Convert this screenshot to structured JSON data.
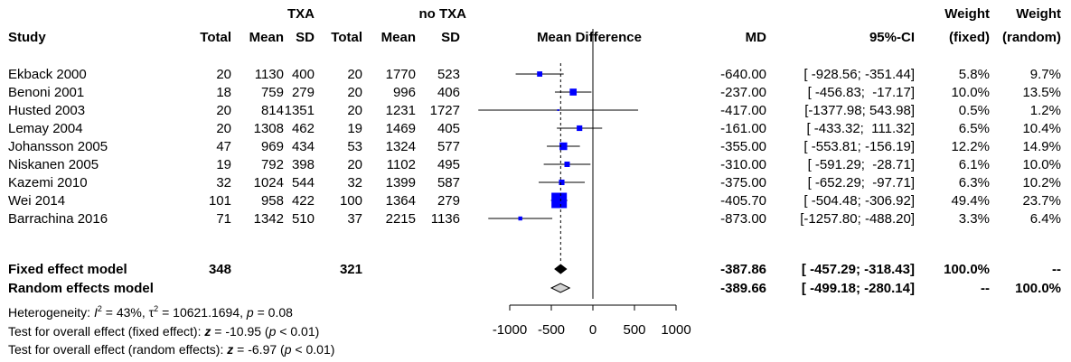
{
  "chart_data": {
    "type": "forest",
    "group_headers": {
      "experimental": "TXA",
      "control": "no TXA"
    },
    "columns": {
      "study": "Study",
      "total_e": "Total",
      "mean_e": "Mean",
      "sd_e": "SD",
      "total_c": "Total",
      "mean_c": "Mean",
      "sd_c": "SD",
      "plot": "Mean Difference",
      "md": "MD",
      "ci": "95%-CI",
      "weight_fixed_1": "Weight",
      "weight_fixed_2": "(fixed)",
      "weight_random_1": "Weight",
      "weight_random_2": "(random)"
    },
    "studies": [
      {
        "name": "Ekback 2000",
        "n_e": "20",
        "mean_e": "1130",
        "sd_e": "400",
        "n_c": "20",
        "mean_c": "1770",
        "sd_c": "523",
        "md": "-640.00",
        "ci": "[ -928.56; -351.44]",
        "w_fixed": "5.8%",
        "w_random": "9.7%",
        "est": -640.0,
        "lo": -928.56,
        "hi": -351.44,
        "wf": 5.8
      },
      {
        "name": "Benoni 2001",
        "n_e": "18",
        "mean_e": "759",
        "sd_e": "279",
        "n_c": "20",
        "mean_c": "996",
        "sd_c": "406",
        "md": "-237.00",
        "ci": "[ -456.83;  -17.17]",
        "w_fixed": "10.0%",
        "w_random": "13.5%",
        "est": -237.0,
        "lo": -456.83,
        "hi": -17.17,
        "wf": 10.0
      },
      {
        "name": "Husted 2003",
        "n_e": "20",
        "mean_e": "814",
        "sd_e": "1351",
        "n_c": "20",
        "mean_c": "1231",
        "sd_c": "1727",
        "md": "-417.00",
        "ci": "[-1377.98; 543.98]",
        "w_fixed": "0.5%",
        "w_random": "1.2%",
        "est": -417.0,
        "lo": -1377.98,
        "hi": 543.98,
        "wf": 0.5
      },
      {
        "name": "Lemay 2004",
        "n_e": "20",
        "mean_e": "1308",
        "sd_e": "462",
        "n_c": "19",
        "mean_c": "1469",
        "sd_c": "405",
        "md": "-161.00",
        "ci": "[ -433.32;  111.32]",
        "w_fixed": "6.5%",
        "w_random": "10.4%",
        "est": -161.0,
        "lo": -433.32,
        "hi": 111.32,
        "wf": 6.5
      },
      {
        "name": "Johansson 2005",
        "n_e": "47",
        "mean_e": "969",
        "sd_e": "434",
        "n_c": "53",
        "mean_c": "1324",
        "sd_c": "577",
        "md": "-355.00",
        "ci": "[ -553.81; -156.19]",
        "w_fixed": "12.2%",
        "w_random": "14.9%",
        "est": -355.0,
        "lo": -553.81,
        "hi": -156.19,
        "wf": 12.2
      },
      {
        "name": "Niskanen 2005",
        "n_e": "19",
        "mean_e": "792",
        "sd_e": "398",
        "n_c": "20",
        "mean_c": "1102",
        "sd_c": "495",
        "md": "-310.00",
        "ci": "[ -591.29;  -28.71]",
        "w_fixed": "6.1%",
        "w_random": "10.0%",
        "est": -310.0,
        "lo": -591.29,
        "hi": -28.71,
        "wf": 6.1
      },
      {
        "name": "Kazemi 2010",
        "n_e": "32",
        "mean_e": "1024",
        "sd_e": "544",
        "n_c": "32",
        "mean_c": "1399",
        "sd_c": "587",
        "md": "-375.00",
        "ci": "[ -652.29;  -97.71]",
        "w_fixed": "6.3%",
        "w_random": "10.2%",
        "est": -375.0,
        "lo": -652.29,
        "hi": -97.71,
        "wf": 6.3
      },
      {
        "name": "Wei 2014",
        "n_e": "101",
        "mean_e": "958",
        "sd_e": "422",
        "n_c": "100",
        "mean_c": "1364",
        "sd_c": "279",
        "md": "-405.70",
        "ci": "[ -504.48; -306.92]",
        "w_fixed": "49.4%",
        "w_random": "23.7%",
        "est": -405.7,
        "lo": -504.48,
        "hi": -306.92,
        "wf": 49.4
      },
      {
        "name": "Barrachina 2016",
        "n_e": "71",
        "mean_e": "1342",
        "sd_e": "510",
        "n_c": "37",
        "mean_c": "2215",
        "sd_c": "1136",
        "md": "-873.00",
        "ci": "[-1257.80; -488.20]",
        "w_fixed": "3.3%",
        "w_random": "6.4%",
        "est": -873.0,
        "lo": -1257.8,
        "hi": -488.2,
        "wf": 3.3
      }
    ],
    "pooled": [
      {
        "name": "Fixed effect model",
        "n_e": "348",
        "n_c": "321",
        "md": "-387.86",
        "ci": "[ -457.29; -318.43]",
        "w_fixed": "100.0%",
        "w_random": "--",
        "est": -387.86,
        "lo": -457.29,
        "hi": -318.43,
        "fill": "#000000"
      },
      {
        "name": "Random effects model",
        "n_e": "",
        "n_c": "",
        "md": "-389.66",
        "ci": "[ -499.18; -280.14]",
        "w_fixed": "--",
        "w_random": "100.0%",
        "est": -389.66,
        "lo": -499.18,
        "hi": -280.14,
        "fill": "#d3d3d3"
      }
    ],
    "heterogeneity": {
      "prefix": "Heterogeneity: ",
      "i2": "43%",
      "tau2": "10621.1694",
      "p": "0.08"
    },
    "tests": [
      {
        "prefix": "Test for overall effect (fixed effect): ",
        "z": "-10.95",
        "p": "0.01"
      },
      {
        "prefix": "Test for overall effect (random effects): ",
        "z": "-6.97",
        "p": "0.01"
      }
    ],
    "x_axis": {
      "ticks": [
        -1000,
        -500,
        0,
        500,
        1000
      ],
      "tick_labels": [
        "-1000",
        "-500",
        "0",
        "500",
        "1000"
      ],
      "xlim": [
        -1000,
        1000
      ]
    },
    "colors": {
      "square": "#0000ff",
      "line": "#000000",
      "fixed_diamond": "#000000",
      "random_diamond": "#d3d3d3"
    }
  }
}
